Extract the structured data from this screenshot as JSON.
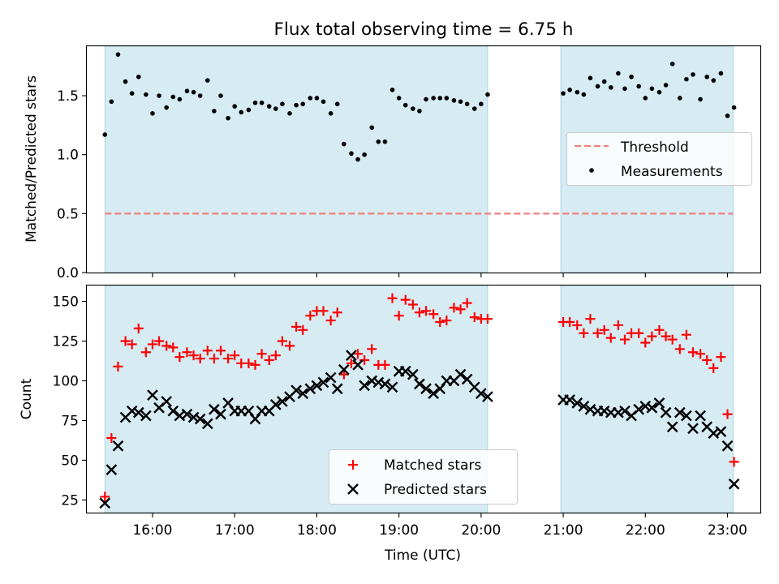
{
  "chart_data": [
    {
      "type": "scatter",
      "title": "Flux total observing time = 6.75 h",
      "xlabel": "",
      "ylabel": "Matched/Predicted stars",
      "xlim": [
        15.2,
        23.4
      ],
      "ylim": [
        0.0,
        1.92
      ],
      "yticks": [
        0.0,
        0.5,
        1.0,
        1.5
      ],
      "ytick_labels": [
        "0.0",
        "0.5",
        "1.0",
        "1.5"
      ],
      "observing_windows": [
        [
          15.42,
          20.08
        ],
        [
          20.97,
          23.07
        ]
      ],
      "threshold": {
        "label": "Threshold",
        "value": 0.5,
        "x_range": [
          15.42,
          23.07
        ],
        "color": "#f08080"
      },
      "series": [
        {
          "name": "Measurements",
          "color": "#000000",
          "x": [
            15.42,
            15.5,
            15.58,
            15.67,
            15.75,
            15.83,
            15.92,
            16.0,
            16.08,
            16.17,
            16.25,
            16.33,
            16.42,
            16.5,
            16.58,
            16.67,
            16.75,
            16.83,
            16.92,
            17.0,
            17.08,
            17.17,
            17.25,
            17.33,
            17.42,
            17.5,
            17.58,
            17.67,
            17.75,
            17.83,
            17.92,
            18.0,
            18.08,
            18.17,
            18.25,
            18.33,
            18.42,
            18.5,
            18.58,
            18.67,
            18.75,
            18.83,
            18.92,
            19.0,
            19.08,
            19.17,
            19.25,
            19.33,
            19.42,
            19.5,
            19.58,
            19.67,
            19.75,
            19.83,
            19.92,
            20.0,
            20.08,
            21.0,
            21.08,
            21.17,
            21.25,
            21.33,
            21.42,
            21.5,
            21.58,
            21.67,
            21.75,
            21.83,
            21.92,
            22.0,
            22.08,
            22.17,
            22.25,
            22.33,
            22.42,
            22.5,
            22.58,
            22.67,
            22.75,
            22.83,
            22.92,
            23.0,
            23.08
          ],
          "values": [
            1.17,
            1.45,
            1.85,
            1.62,
            1.52,
            1.66,
            1.51,
            1.35,
            1.5,
            1.4,
            1.49,
            1.47,
            1.54,
            1.53,
            1.5,
            1.63,
            1.37,
            1.5,
            1.31,
            1.41,
            1.36,
            1.38,
            1.44,
            1.44,
            1.41,
            1.39,
            1.43,
            1.35,
            1.42,
            1.43,
            1.48,
            1.48,
            1.45,
            1.35,
            1.43,
            1.09,
            1.01,
            0.96,
            1.0,
            1.23,
            1.11,
            1.11,
            1.55,
            1.48,
            1.42,
            1.39,
            1.37,
            1.47,
            1.48,
            1.48,
            1.48,
            1.46,
            1.45,
            1.43,
            1.39,
            1.43,
            1.51,
            1.52,
            1.55,
            1.53,
            1.51,
            1.65,
            1.58,
            1.62,
            1.57,
            1.69,
            1.56,
            1.66,
            1.58,
            1.48,
            1.56,
            1.53,
            1.59,
            1.77,
            1.48,
            1.64,
            1.68,
            1.47,
            1.66,
            1.63,
            1.69,
            1.33,
            1.4
          ]
        }
      ],
      "legend": {
        "position": "center-right",
        "entries": [
          "Threshold",
          "Measurements"
        ]
      }
    },
    {
      "type": "scatter",
      "title": "",
      "xlabel": "Time (UTC)",
      "ylabel": "Count",
      "xlim": [
        15.2,
        23.4
      ],
      "ylim": [
        17,
        160
      ],
      "yticks": [
        25,
        50,
        75,
        100,
        125,
        150
      ],
      "ytick_labels": [
        "25",
        "50",
        "75",
        "100",
        "125",
        "150"
      ],
      "xticks": [
        16,
        17,
        18,
        19,
        20,
        21,
        22,
        23
      ],
      "xtick_labels": [
        "16:00",
        "17:00",
        "18:00",
        "19:00",
        "20:00",
        "21:00",
        "22:00",
        "23:00"
      ],
      "observing_windows": [
        [
          15.42,
          20.08
        ],
        [
          20.97,
          23.07
        ]
      ],
      "series": [
        {
          "name": "Matched stars",
          "marker": "plus",
          "color": "#ff0000",
          "x": [
            15.42,
            15.5,
            15.58,
            15.67,
            15.75,
            15.83,
            15.92,
            16.0,
            16.08,
            16.17,
            16.25,
            16.33,
            16.42,
            16.5,
            16.58,
            16.67,
            16.75,
            16.83,
            16.92,
            17.0,
            17.08,
            17.17,
            17.25,
            17.33,
            17.42,
            17.5,
            17.58,
            17.67,
            17.75,
            17.83,
            17.92,
            18.0,
            18.08,
            18.17,
            18.25,
            18.33,
            18.42,
            18.5,
            18.58,
            18.67,
            18.75,
            18.83,
            18.92,
            19.0,
            19.08,
            19.17,
            19.25,
            19.33,
            19.42,
            19.5,
            19.58,
            19.67,
            19.75,
            19.83,
            19.92,
            20.0,
            20.08,
            21.0,
            21.08,
            21.17,
            21.25,
            21.33,
            21.42,
            21.5,
            21.58,
            21.67,
            21.75,
            21.83,
            21.92,
            22.0,
            22.08,
            22.17,
            22.25,
            22.33,
            22.42,
            22.5,
            22.58,
            22.67,
            22.75,
            22.83,
            22.92,
            23.0,
            23.08
          ],
          "values": [
            27,
            64,
            109,
            125,
            123,
            133,
            118,
            123,
            125,
            122,
            121,
            115,
            118,
            116,
            114,
            119,
            114,
            119,
            114,
            116,
            111,
            111,
            110,
            117,
            113,
            116,
            125,
            122,
            134,
            132,
            141,
            144,
            144,
            138,
            143,
            104,
            111,
            117,
            113,
            120,
            110,
            110,
            152,
            141,
            151,
            148,
            143,
            144,
            142,
            137,
            138,
            146,
            145,
            149,
            140,
            139,
            139,
            137,
            137,
            135,
            130,
            139,
            130,
            132,
            127,
            135,
            126,
            130,
            130,
            124,
            128,
            132,
            128,
            126,
            120,
            129,
            118,
            117,
            113,
            108,
            115,
            79,
            49
          ]
        },
        {
          "name": "Predicted stars",
          "marker": "cross",
          "color": "#000000",
          "x": [
            15.42,
            15.5,
            15.58,
            15.67,
            15.75,
            15.83,
            15.92,
            16.0,
            16.08,
            16.17,
            16.25,
            16.33,
            16.42,
            16.5,
            16.58,
            16.67,
            16.75,
            16.83,
            16.92,
            17.0,
            17.08,
            17.17,
            17.25,
            17.33,
            17.42,
            17.5,
            17.58,
            17.67,
            17.75,
            17.83,
            17.92,
            18.0,
            18.08,
            18.17,
            18.25,
            18.33,
            18.42,
            18.5,
            18.58,
            18.67,
            18.75,
            18.83,
            18.92,
            19.0,
            19.08,
            19.17,
            19.25,
            19.33,
            19.42,
            19.5,
            19.58,
            19.67,
            19.75,
            19.83,
            19.92,
            20.0,
            20.08,
            21.0,
            21.08,
            21.17,
            21.25,
            21.33,
            21.42,
            21.5,
            21.58,
            21.67,
            21.75,
            21.83,
            21.92,
            22.0,
            22.08,
            22.17,
            22.25,
            22.33,
            22.42,
            22.5,
            22.58,
            22.67,
            22.75,
            22.83,
            22.92,
            23.0,
            23.08
          ],
          "values": [
            23,
            44,
            59,
            77,
            81,
            80,
            78,
            91,
            83,
            87,
            81,
            78,
            79,
            77,
            76,
            73,
            82,
            79,
            86,
            81,
            81,
            81,
            76,
            81,
            81,
            85,
            87,
            90,
            94,
            92,
            95,
            97,
            99,
            102,
            95,
            107,
            116,
            110,
            97,
            100,
            99,
            98,
            96,
            106,
            106,
            104,
            98,
            95,
            92,
            95,
            100,
            100,
            104,
            101,
            96,
            92,
            90,
            88,
            88,
            86,
            84,
            82,
            81,
            81,
            80,
            80,
            81,
            78,
            82,
            84,
            83,
            86,
            80,
            71,
            80,
            78,
            70,
            78,
            71,
            67,
            68,
            59,
            35
          ]
        }
      ],
      "legend": {
        "position": "bottom-center",
        "entries": [
          "Matched stars",
          "Predicted stars"
        ]
      }
    }
  ]
}
